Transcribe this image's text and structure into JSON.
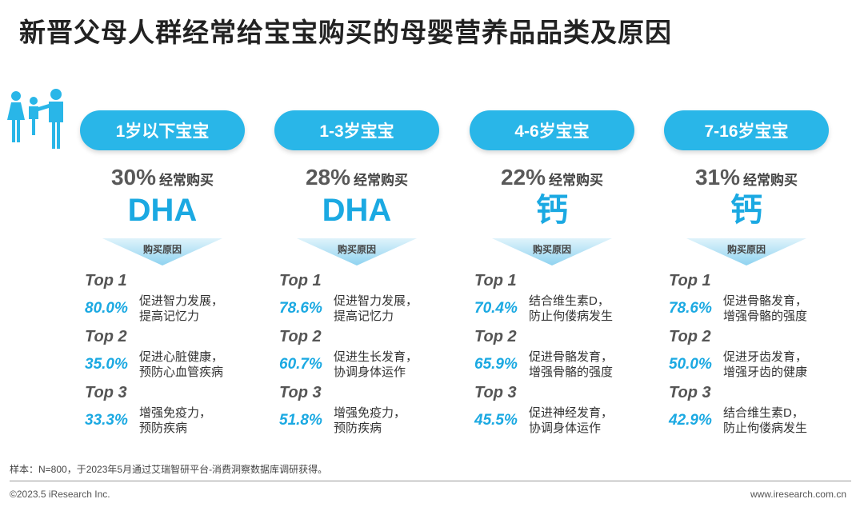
{
  "title": "新晋父母人群经常给宝宝购买的母婴营养品品类及原因",
  "header_icon": "family-icon",
  "accent_color": "#29B6E8",
  "reason_header": "购买原因",
  "groups": [
    {
      "age": "1岁以下宝宝",
      "pct": "30%",
      "pct_label": "经常购买",
      "product": "DHA",
      "reasons": [
        {
          "rank": "Top 1",
          "pct": "80.0%",
          "line1": "促进智力发展，",
          "line2": "提高记忆力"
        },
        {
          "rank": "Top 2",
          "pct": "35.0%",
          "line1": "促进心脏健康，",
          "line2": "预防心血管疾病"
        },
        {
          "rank": "Top 3",
          "pct": "33.3%",
          "line1": "增强免疫力，",
          "line2": "预防疾病"
        }
      ]
    },
    {
      "age": "1-3岁宝宝",
      "pct": "28%",
      "pct_label": "经常购买",
      "product": "DHA",
      "reasons": [
        {
          "rank": "Top 1",
          "pct": "78.6%",
          "line1": "促进智力发展，",
          "line2": "提高记忆力"
        },
        {
          "rank": "Top 2",
          "pct": "60.7%",
          "line1": "促进生长发育，",
          "line2": "协调身体运作"
        },
        {
          "rank": "Top 3",
          "pct": "51.8%",
          "line1": "增强免疫力，",
          "line2": "预防疾病"
        }
      ]
    },
    {
      "age": "4-6岁宝宝",
      "pct": "22%",
      "pct_label": "经常购买",
      "product": "钙",
      "reasons": [
        {
          "rank": "Top 1",
          "pct": "70.4%",
          "line1": "结合维生素D，",
          "line2": "防止佝偻病发生"
        },
        {
          "rank": "Top 2",
          "pct": "65.9%",
          "line1": "促进骨骼发育，",
          "line2": "增强骨骼的强度"
        },
        {
          "rank": "Top 3",
          "pct": "45.5%",
          "line1": "促进神经发育，",
          "line2": "协调身体运作"
        }
      ]
    },
    {
      "age": "7-16岁宝宝",
      "pct": "31%",
      "pct_label": "经常购买",
      "product": "钙",
      "reasons": [
        {
          "rank": "Top 1",
          "pct": "78.6%",
          "line1": "促进骨骼发育，",
          "line2": "增强骨骼的强度"
        },
        {
          "rank": "Top 2",
          "pct": "50.0%",
          "line1": "促进牙齿发育，",
          "line2": "增强牙齿的健康"
        },
        {
          "rank": "Top 3",
          "pct": "42.9%",
          "line1": "结合维生素D，",
          "line2": "防止佝偻病发生"
        }
      ]
    }
  ],
  "footnote": "样本：N=800，于2023年5月通过艾瑞智研平台-消费洞察数据库调研获得。",
  "copyright": "©2023.5 iResearch Inc.",
  "website": "www.iresearch.com.cn"
}
